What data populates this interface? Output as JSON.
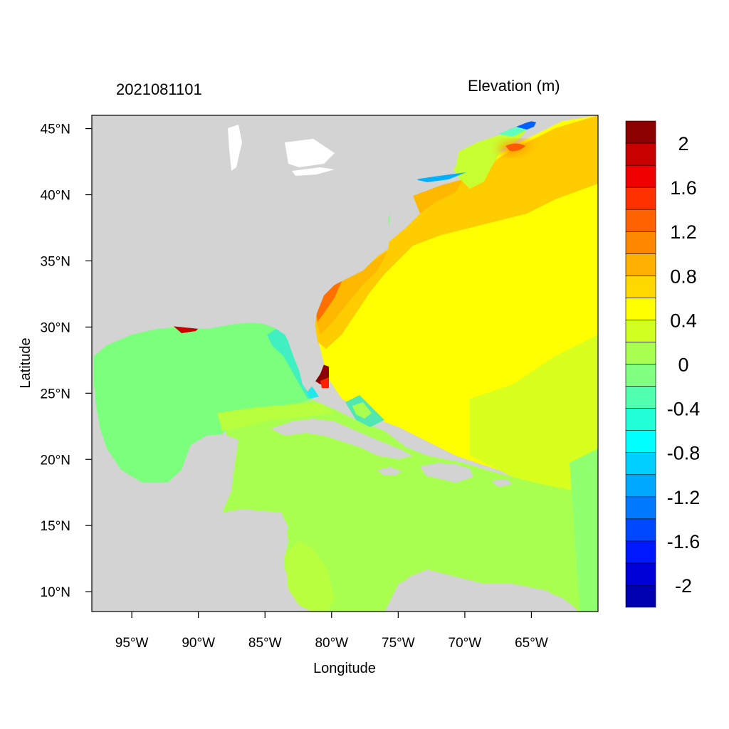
{
  "title_left": "2021081101",
  "title_right": "Elevation (m)",
  "chart_data": {
    "type": "heatmap",
    "title": "2021081101",
    "subtitle": "Elevation (m)",
    "xlabel": "Longitude",
    "ylabel": "Latitude",
    "xlim": [
      -98,
      -60
    ],
    "ylim": [
      8.5,
      46
    ],
    "x_ticks": [
      {
        "value": -95,
        "label": "95°W"
      },
      {
        "value": -90,
        "label": "90°W"
      },
      {
        "value": -85,
        "label": "85°W"
      },
      {
        "value": -80,
        "label": "80°W"
      },
      {
        "value": -75,
        "label": "75°W"
      },
      {
        "value": -70,
        "label": "70°W"
      },
      {
        "value": -65,
        "label": "65°W"
      }
    ],
    "y_ticks": [
      {
        "value": 45,
        "label": "45°N"
      },
      {
        "value": 40,
        "label": "40°N"
      },
      {
        "value": 35,
        "label": "35°N"
      },
      {
        "value": 30,
        "label": "30°N"
      },
      {
        "value": 25,
        "label": "25°N"
      },
      {
        "value": 20,
        "label": "20°N"
      },
      {
        "value": 15,
        "label": "15°N"
      },
      {
        "value": 10,
        "label": "10°N"
      }
    ],
    "colorbar": {
      "levels": [
        -2.2,
        -2,
        -1.8,
        -1.6,
        -1.4,
        -1.2,
        -1,
        -0.8,
        -0.6,
        -0.4,
        -0.2,
        0,
        0.2,
        0.4,
        0.6,
        0.8,
        1,
        1.2,
        1.4,
        1.6,
        1.8,
        2,
        2.2
      ],
      "colors": [
        "#0000b0",
        "#0000d8",
        "#0018ff",
        "#0048ff",
        "#0078ff",
        "#00a8ff",
        "#00d0ff",
        "#00ffff",
        "#20ffd8",
        "#50ffb0",
        "#80ff80",
        "#a8ff50",
        "#d0ff20",
        "#ffff00",
        "#ffd800",
        "#ffb000",
        "#ff8800",
        "#ff6000",
        "#ff3000",
        "#f00000",
        "#c80000",
        "#8c0000"
      ],
      "labels": [
        {
          "value": 2,
          "label": "2"
        },
        {
          "value": 1.6,
          "label": "1.6"
        },
        {
          "value": 1.2,
          "label": "1.2"
        },
        {
          "value": 0.8,
          "label": "0.8"
        },
        {
          "value": 0.4,
          "label": "0.4"
        },
        {
          "value": 0,
          "label": "0"
        },
        {
          "value": -0.4,
          "label": "-0.4"
        },
        {
          "value": -0.8,
          "label": "-0.8"
        },
        {
          "value": -1.2,
          "label": "-1.2"
        },
        {
          "value": -1.6,
          "label": "-1.6"
        },
        {
          "value": -2,
          "label": "-2"
        }
      ]
    },
    "land_color": "#d3d3d3"
  }
}
